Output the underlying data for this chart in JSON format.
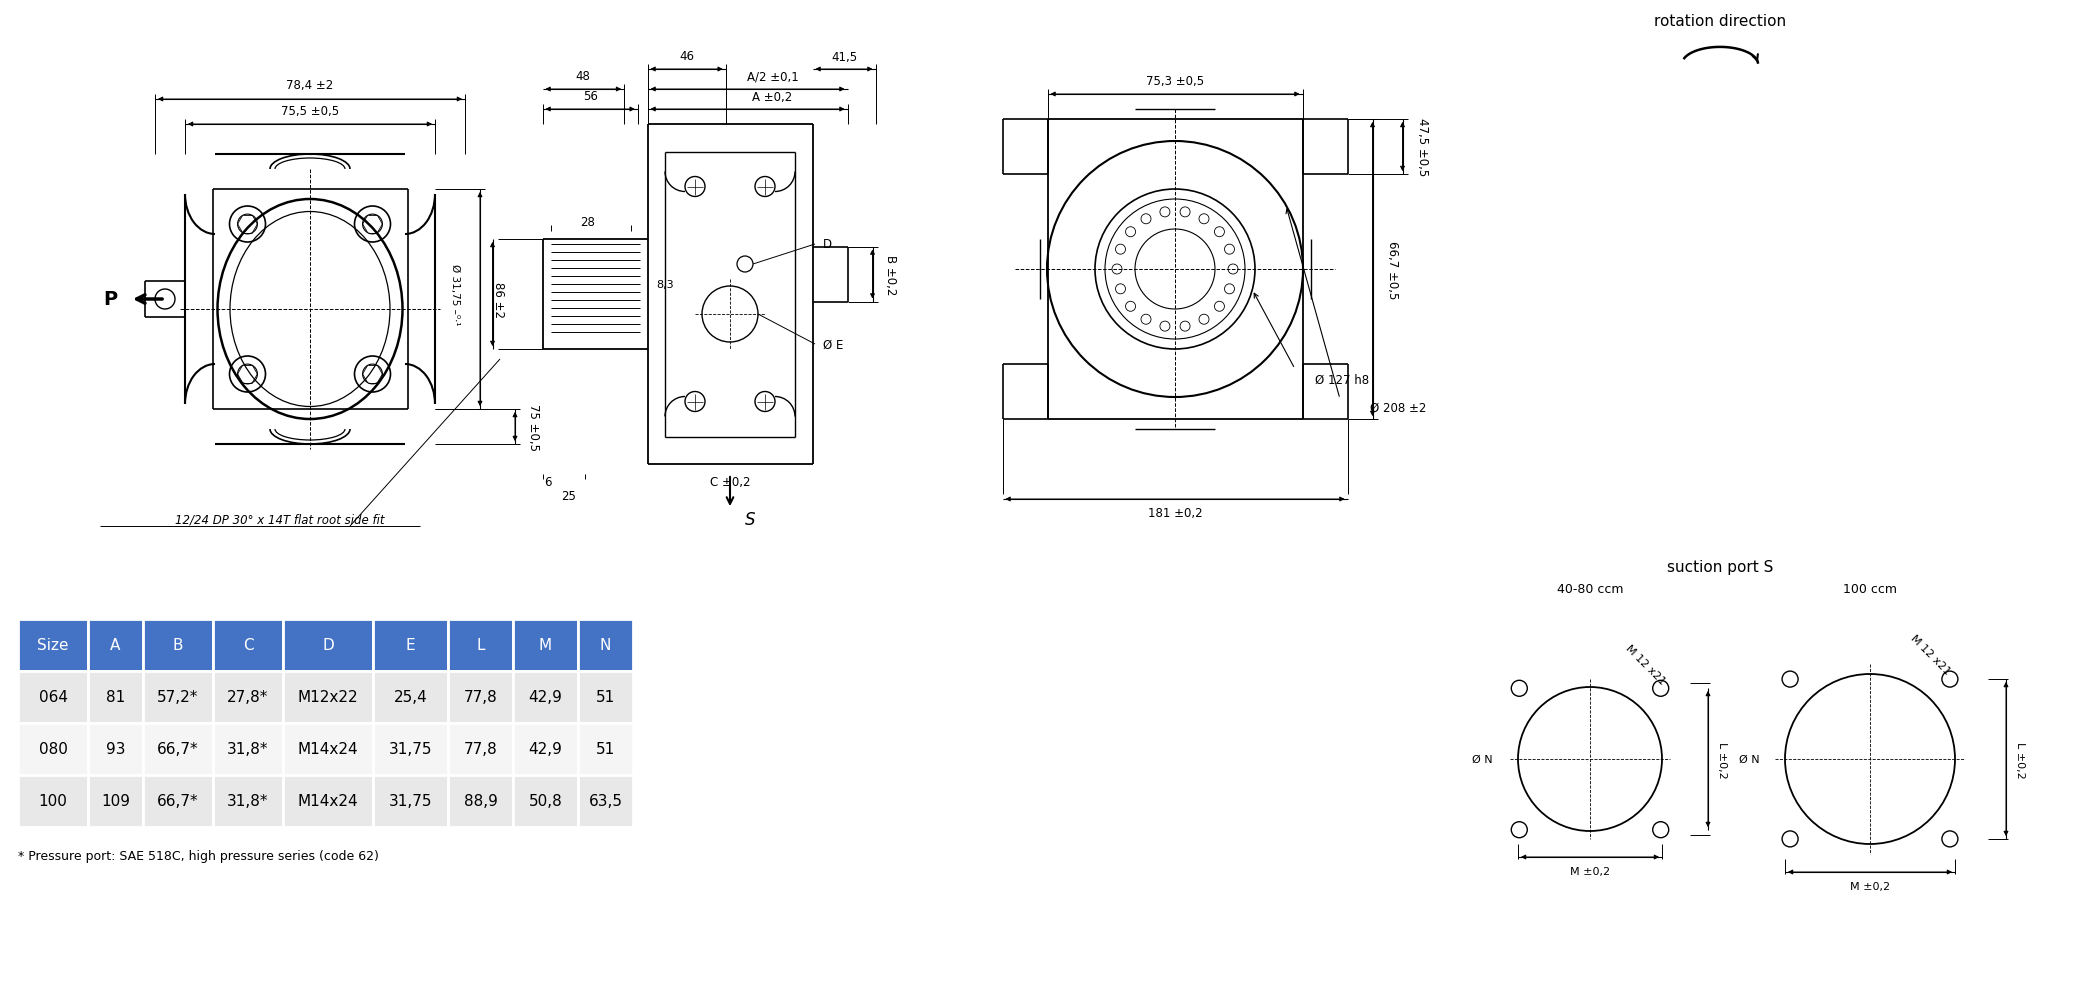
{
  "bg_color": "#ffffff",
  "table_header_color": "#4472c4",
  "table_header_text_color": "#ffffff",
  "table_row_colors": [
    "#e8e8e8",
    "#f5f5f5",
    "#e8e8e8"
  ],
  "table_text_color": "#000000",
  "table_headers": [
    "Size",
    "A",
    "B",
    "C",
    "D",
    "E",
    "L",
    "M",
    "N"
  ],
  "table_rows": [
    [
      "064",
      "81",
      "57,2*",
      "27,8*",
      "M12x22",
      "25,4",
      "77,8",
      "42,9",
      "51"
    ],
    [
      "080",
      "93",
      "66,7*",
      "31,8*",
      "M14x24",
      "31,75",
      "77,8",
      "42,9",
      "51"
    ],
    [
      "100",
      "109",
      "66,7*",
      "31,8*",
      "M14x24",
      "31,75",
      "88,9",
      "50,8",
      "63,5"
    ]
  ],
  "footnote": "* Pressure port: SAE 518C, high pressure series (code 62)",
  "rotation_label": "rotation direction",
  "suction_label": "suction port S",
  "spline_label": "12/24 DP 30° x 14T flat root side fit",
  "line_color": "#000000",
  "dim_color": "#000000"
}
